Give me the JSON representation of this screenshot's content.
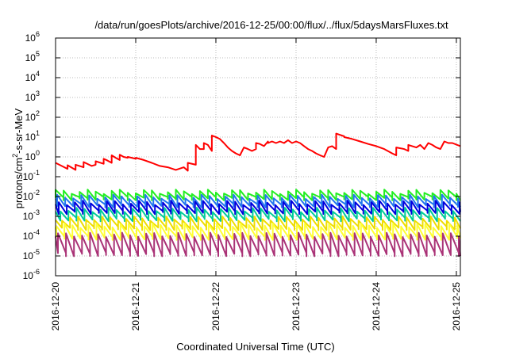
{
  "chart_data": {
    "type": "line",
    "title": "/data/run/goesPlots/archive/2016-12-25/00:00/flux/../flux/5daysMarsFluxes.txt",
    "xlabel": "Coordinated Universal Time (UTC)",
    "ylabel": "protons/cm²-s-sr-MeV",
    "ylabel_parts": {
      "base": "protons/cm",
      "sup": "2",
      "rest": "-s-sr-MeV"
    },
    "yscale": "log",
    "ylim": [
      1e-06,
      1000000.0
    ],
    "xlim_days": [
      0,
      5.05
    ],
    "grid": true,
    "legend": "none",
    "y_ticks": [
      {
        "exp": -6,
        "label": "10",
        "sup": "-6"
      },
      {
        "exp": -5,
        "label": "10",
        "sup": "-5"
      },
      {
        "exp": -4,
        "label": "10",
        "sup": "-4"
      },
      {
        "exp": -3,
        "label": "10",
        "sup": "-3"
      },
      {
        "exp": -2,
        "label": "10",
        "sup": "-2"
      },
      {
        "exp": -1,
        "label": "10",
        "sup": "-1"
      },
      {
        "exp": 0,
        "label": "10",
        "sup": "0"
      },
      {
        "exp": 1,
        "label": "10",
        "sup": "1"
      },
      {
        "exp": 2,
        "label": "10",
        "sup": "2"
      },
      {
        "exp": 3,
        "label": "10",
        "sup": "3"
      },
      {
        "exp": 4,
        "label": "10",
        "sup": "4"
      },
      {
        "exp": 5,
        "label": "10",
        "sup": "5"
      },
      {
        "exp": 6,
        "label": "10",
        "sup": "6"
      }
    ],
    "x_ticks": [
      "2016-12-20",
      "2016-12-21",
      "2016-12-22",
      "2016-12-23",
      "2016-12-24",
      "2016-12-25"
    ],
    "series": [
      {
        "color": "#ff0000",
        "x": [
          0,
          0.15,
          0.15,
          0.25,
          0.25,
          0.35,
          0.35,
          0.45,
          0.5,
          0.5,
          0.6,
          0.6,
          0.65,
          0.7,
          0.7,
          0.75,
          0.8,
          0.8,
          0.85,
          0.9,
          0.9,
          0.95,
          1.0,
          1.0,
          1.1,
          1.2,
          1.3,
          1.4,
          1.5,
          1.6,
          1.65,
          1.65,
          1.75,
          1.75,
          1.8,
          1.85,
          1.85,
          1.9,
          1.95,
          1.95,
          2.0,
          2.05,
          2.1,
          2.15,
          2.2,
          2.25,
          2.3,
          2.35,
          2.4,
          2.45,
          2.5,
          2.5,
          2.55,
          2.6,
          2.65,
          2.65,
          2.7,
          2.75,
          2.8,
          2.85,
          2.9,
          2.95,
          3.0,
          3.05,
          3.1,
          3.15,
          3.2,
          3.25,
          3.3,
          3.35,
          3.4,
          3.45,
          3.5,
          3.5,
          3.6,
          3.6,
          3.7,
          3.8,
          3.9,
          4.0,
          4.1,
          4.2,
          4.25,
          4.25,
          4.35,
          4.4,
          4.4,
          4.5,
          4.55,
          4.6,
          4.65,
          4.7,
          4.75,
          4.8,
          4.85,
          4.9,
          4.95,
          5.05
        ],
        "values": [
          0.5,
          0.25,
          0.38,
          0.22,
          0.4,
          0.3,
          0.55,
          0.35,
          0.4,
          0.6,
          0.45,
          0.8,
          0.65,
          0.5,
          1.2,
          0.9,
          0.7,
          1.3,
          1.0,
          0.9,
          1.0,
          0.9,
          0.8,
          0.9,
          0.7,
          0.5,
          0.35,
          0.3,
          0.22,
          0.3,
          0.2,
          0.5,
          0.4,
          4.0,
          2.5,
          2.5,
          5.0,
          4.0,
          2.0,
          12.0,
          10.0,
          8.0,
          5.0,
          3.0,
          2.0,
          1.5,
          1.2,
          3.0,
          2.5,
          2.0,
          2.5,
          5.0,
          4.5,
          3.5,
          6.0,
          5.0,
          6.0,
          5.0,
          6.0,
          5.0,
          7.0,
          5.0,
          6.0,
          5.0,
          3.5,
          2.5,
          2.0,
          1.5,
          1.2,
          1.0,
          3.0,
          3.5,
          2.5,
          15.0,
          11.0,
          10.0,
          8.0,
          6.0,
          4.5,
          3.5,
          2.5,
          1.5,
          1.2,
          3.0,
          2.5,
          2.0,
          4.0,
          3.0,
          4.0,
          2.5,
          5.0,
          4.0,
          3.0,
          2.5,
          6.0,
          5.0,
          5.0,
          3.5
        ]
      },
      {
        "color": "#22ee22",
        "base": 0.018,
        "low": 0.008,
        "period": 0.1,
        "phase": 0.0
      },
      {
        "color": "#2277ee",
        "base": 0.01,
        "low": 0.0035,
        "period": 0.1,
        "phase": 0.02
      },
      {
        "color": "#0000dd",
        "base": 0.005,
        "low": 0.0016,
        "period": 0.1,
        "phase": 0.04
      },
      {
        "color": "#00cc99",
        "base": 0.0022,
        "low": 0.0007,
        "period": 0.1,
        "phase": 0.06
      },
      {
        "color": "#eedd00",
        "base": 0.0008,
        "low": 0.00025,
        "period": 0.1,
        "phase": 0.08
      },
      {
        "color": "#ffff33",
        "base": 0.00035,
        "low": 8e-05,
        "period": 0.1,
        "phase": 0.01
      },
      {
        "color": "#aa3377",
        "base": 0.00012,
        "low": 1.2e-05,
        "period": 0.1,
        "phase": 0.03
      }
    ]
  }
}
